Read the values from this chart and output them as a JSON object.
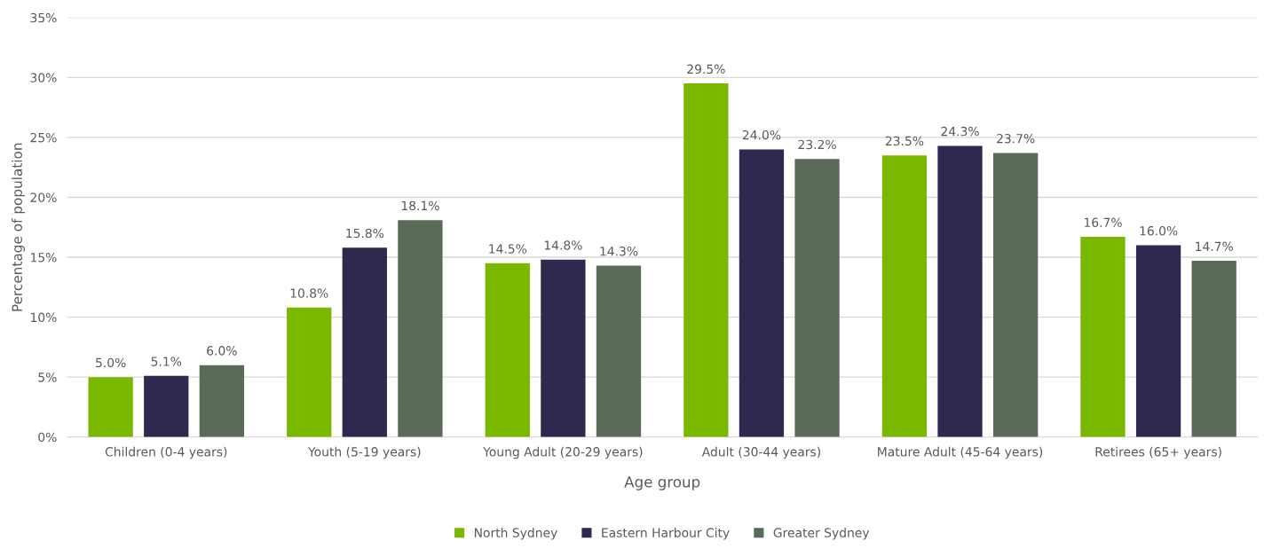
{
  "chart_data": {
    "type": "bar",
    "xlabel": "Age group",
    "ylabel": "Percentage of population",
    "categories": [
      "Children (0-4 years)",
      "Youth (5-19 years)",
      "Young Adult (20-29 years)",
      "Adult (30-44 years)",
      "Mature Adult (45-64 years)",
      "Retirees (65+ years)"
    ],
    "series": [
      {
        "name": "North Sydney",
        "color": "#7ab800",
        "values": [
          5.0,
          10.8,
          14.5,
          29.5,
          23.5,
          16.7
        ],
        "value_labels": [
          "5.0%",
          "10.8%",
          "14.5%",
          "29.5%",
          "23.5%",
          "16.7%"
        ]
      },
      {
        "name": "Eastern Harbour City",
        "color": "#2e2a4f",
        "values": [
          5.1,
          15.8,
          14.8,
          24.0,
          24.3,
          16.0
        ],
        "value_labels": [
          "5.1%",
          "15.8%",
          "14.8%",
          "24.0%",
          "24.3%",
          "16.0%"
        ]
      },
      {
        "name": "Greater Sydney",
        "color": "#5a6b58",
        "values": [
          6.0,
          18.1,
          14.3,
          23.2,
          23.7,
          14.7
        ],
        "value_labels": [
          "6.0%",
          "18.1%",
          "14.3%",
          "23.2%",
          "23.7%",
          "14.7%"
        ]
      }
    ],
    "ylim": [
      0,
      35
    ],
    "yticks": [
      {
        "value": 0,
        "label": "0%"
      },
      {
        "value": 5,
        "label": "5%"
      },
      {
        "value": 10,
        "label": "10%"
      },
      {
        "value": 15,
        "label": "15%"
      },
      {
        "value": 20,
        "label": "20%"
      },
      {
        "value": 25,
        "label": "25%"
      },
      {
        "value": 30,
        "label": "30%"
      },
      {
        "value": 35,
        "label": "35%"
      }
    ],
    "grid": "y",
    "legend": "bottom"
  }
}
